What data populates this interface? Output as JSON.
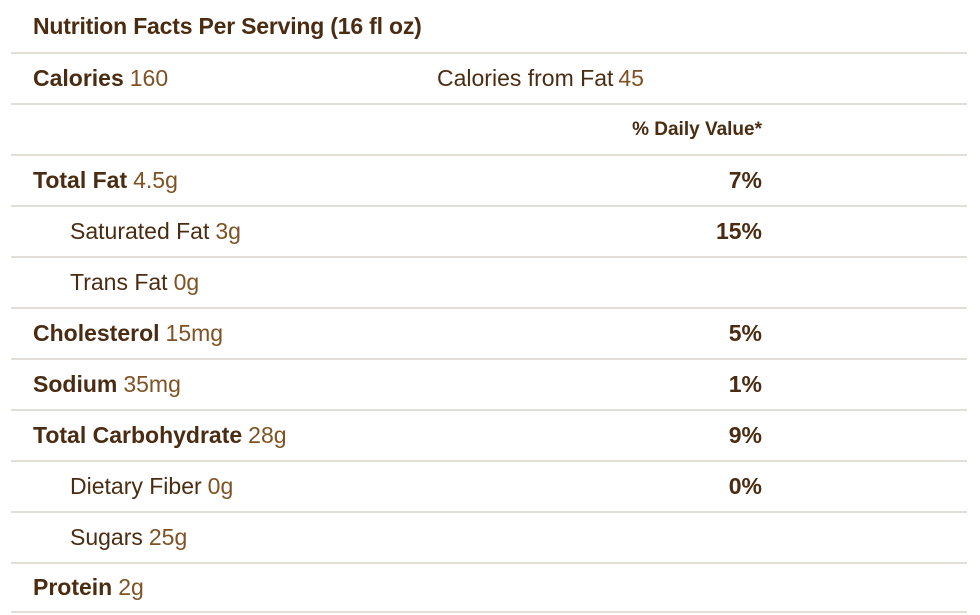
{
  "title": "Nutrition Facts Per Serving (16 fl oz)",
  "calories": {
    "label": "Calories",
    "value": "160",
    "from_fat_label": "Calories from Fat",
    "from_fat_value": "45"
  },
  "daily_value_header": "% Daily Value*",
  "rows": [
    {
      "label": "Total Fat",
      "amount": "4.5g",
      "dv": "7%",
      "indent": false,
      "bold": true
    },
    {
      "label": "Saturated Fat",
      "amount": "3g",
      "dv": "15%",
      "indent": true,
      "bold": false
    },
    {
      "label": "Trans Fat",
      "amount": "0g",
      "dv": "",
      "indent": true,
      "bold": false
    },
    {
      "label": "Cholesterol",
      "amount": "15mg",
      "dv": "5%",
      "indent": false,
      "bold": true
    },
    {
      "label": "Sodium",
      "amount": "35mg",
      "dv": "1%",
      "indent": false,
      "bold": true
    },
    {
      "label": "Total Carbohydrate",
      "amount": "28g",
      "dv": "9%",
      "indent": false,
      "bold": true
    },
    {
      "label": "Dietary Fiber",
      "amount": "0g",
      "dv": "0%",
      "indent": true,
      "bold": false
    },
    {
      "label": "Sugars",
      "amount": "25g",
      "dv": "",
      "indent": true,
      "bold": false
    },
    {
      "label": "Protein",
      "amount": "2g",
      "dv": "",
      "indent": false,
      "bold": true
    }
  ],
  "colors": {
    "text_dark": "#4a2c12",
    "text_value": "#7f5224",
    "divider": "#e2dfd9",
    "background": "#ffffff"
  }
}
